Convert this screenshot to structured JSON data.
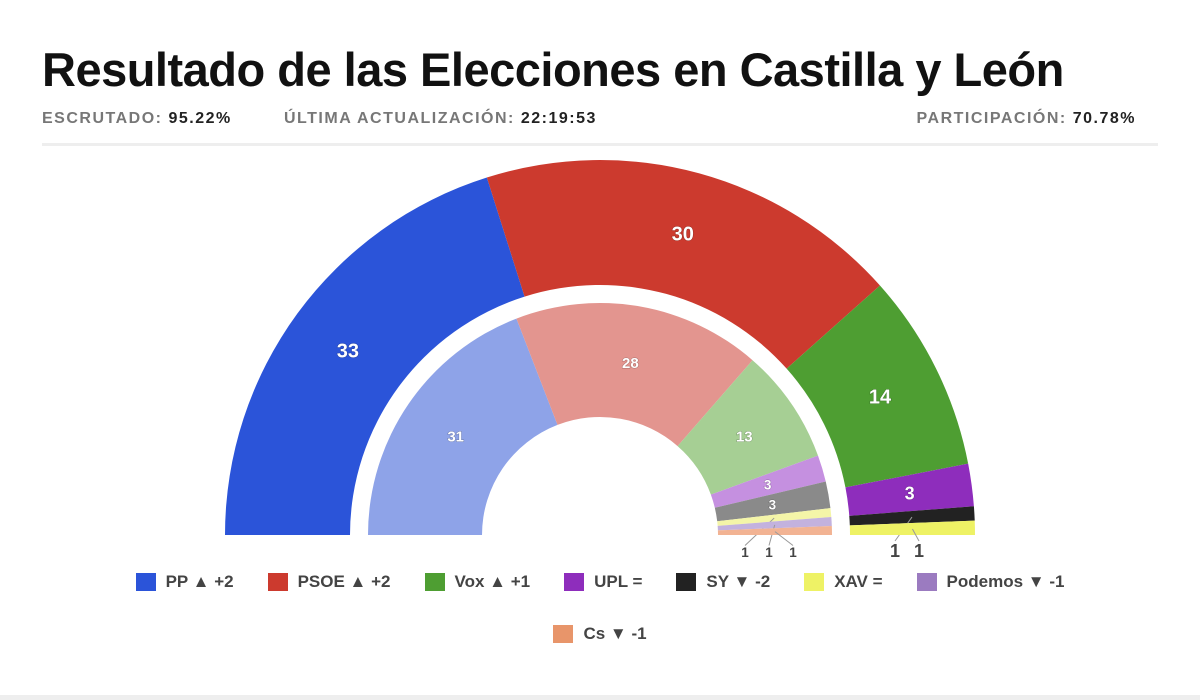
{
  "header": {
    "title": "Resultado de las Elecciones en Castilla y León",
    "escrutado_label": "ESCRUTADO:",
    "escrutado": "95.22%",
    "actualizacion_label": "ÚLTIMA ACTUALIZACIÓN:",
    "actualizacion": "22:19:53",
    "participacion_label": "PARTICIPACIÓN:",
    "participacion": "70.78%"
  },
  "chart_data": {
    "type": "pie",
    "subtype": "semicircle-double-donut",
    "outer_ring": {
      "categories": [
        "PP",
        "PSOE",
        "Vox",
        "UPL",
        "SY",
        "XAV"
      ],
      "values": [
        33,
        30,
        14,
        3,
        1,
        1
      ]
    },
    "inner_ring": {
      "categories": [
        "PP",
        "PSOE",
        "Vox",
        "UPL",
        "SY",
        "XAV",
        "Podemos",
        "Cs"
      ],
      "values": [
        31,
        28,
        13,
        3,
        3,
        1,
        1,
        1
      ]
    },
    "colors": {
      "PP": "#2b54d9",
      "PSOE": "#cc3a2e",
      "Vox": "#4e9e32",
      "UPL": "#8e2dbc",
      "SY": "#222222",
      "XAV": "#eef265",
      "Podemos": "#9b7bc0",
      "Cs": "#e8956a"
    },
    "inner_colors": {
      "PP": "#8ea3e8",
      "PSOE": "#e3958f",
      "Vox": "#a6cf94",
      "UPL": "#c590e0",
      "SY": "#8a8a8a",
      "XAV": "#f4f5a8",
      "Podemos": "#c3b2de",
      "Cs": "#f2b393"
    },
    "legend": [
      {
        "party": "PP",
        "change": "▲ +2"
      },
      {
        "party": "PSOE",
        "change": "▲ +2"
      },
      {
        "party": "Vox",
        "change": "▲ +1"
      },
      {
        "party": "UPL",
        "change": "="
      },
      {
        "party": "SY",
        "change": "▼ -2"
      },
      {
        "party": "XAV",
        "change": "="
      },
      {
        "party": "Podemos",
        "change": "▼ -1"
      },
      {
        "party": "Cs",
        "change": "▼ -1"
      }
    ],
    "legend_position": "bottom"
  }
}
